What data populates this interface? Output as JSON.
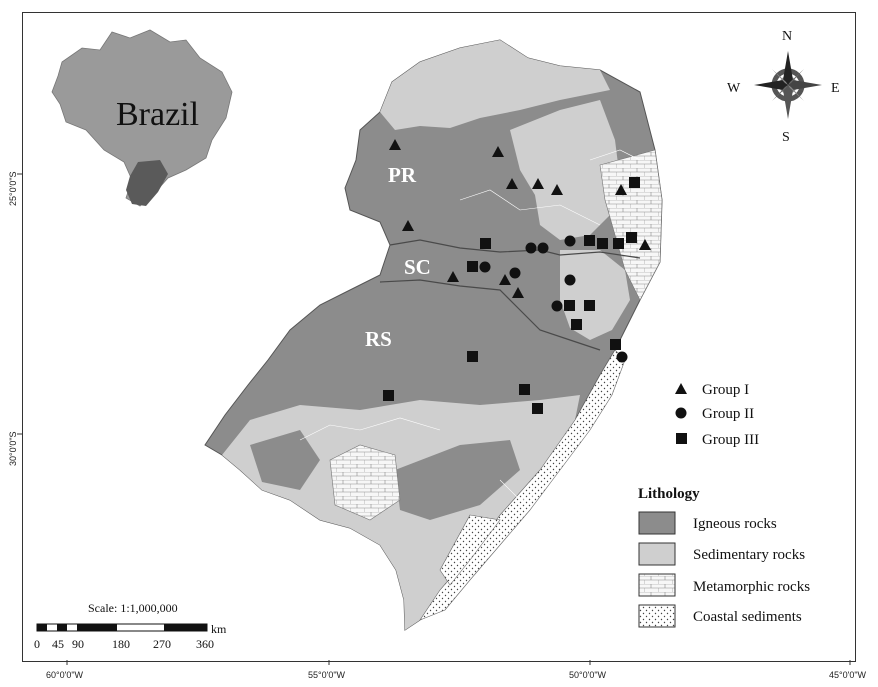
{
  "inset": {
    "label": "Brazil"
  },
  "compass": {
    "n": "N",
    "s": "S",
    "e": "E",
    "w": "W"
  },
  "states": [
    {
      "code": "PR"
    },
    {
      "code": "SC"
    },
    {
      "code": "RS"
    }
  ],
  "axes": {
    "x_ticks": [
      "60°0'0\"W",
      "55°0'0\"W",
      "50°0'0\"W",
      "45°0'0\"W"
    ],
    "y_ticks": [
      "25°0'0\"S",
      "30°0'0\"S"
    ]
  },
  "groups_legend": [
    {
      "label": "Group I",
      "symbol": "triangle"
    },
    {
      "label": "Group II",
      "symbol": "circle"
    },
    {
      "label": "Group III",
      "symbol": "square"
    }
  ],
  "lithology": {
    "title": "Lithology",
    "items": [
      {
        "label": "Igneous rocks",
        "color": "#8c8c8c"
      },
      {
        "label": "Sedimentary rocks",
        "color": "#cfcfcf"
      },
      {
        "label": "Metamorphic rocks",
        "color": "#f3f3f3"
      },
      {
        "label": "Coastal sediments",
        "color": "#ffffff"
      }
    ]
  },
  "scale": {
    "title": "Scale: 1:1,000,000",
    "unit": "km",
    "labels": [
      "0",
      "45",
      "90",
      "180",
      "270",
      "360"
    ]
  },
  "colors": {
    "igneous": "#8c8c8c",
    "sedimentary": "#cfcfcf",
    "metamorphic": "#f3f3f3",
    "coastal": "#ffffff"
  }
}
